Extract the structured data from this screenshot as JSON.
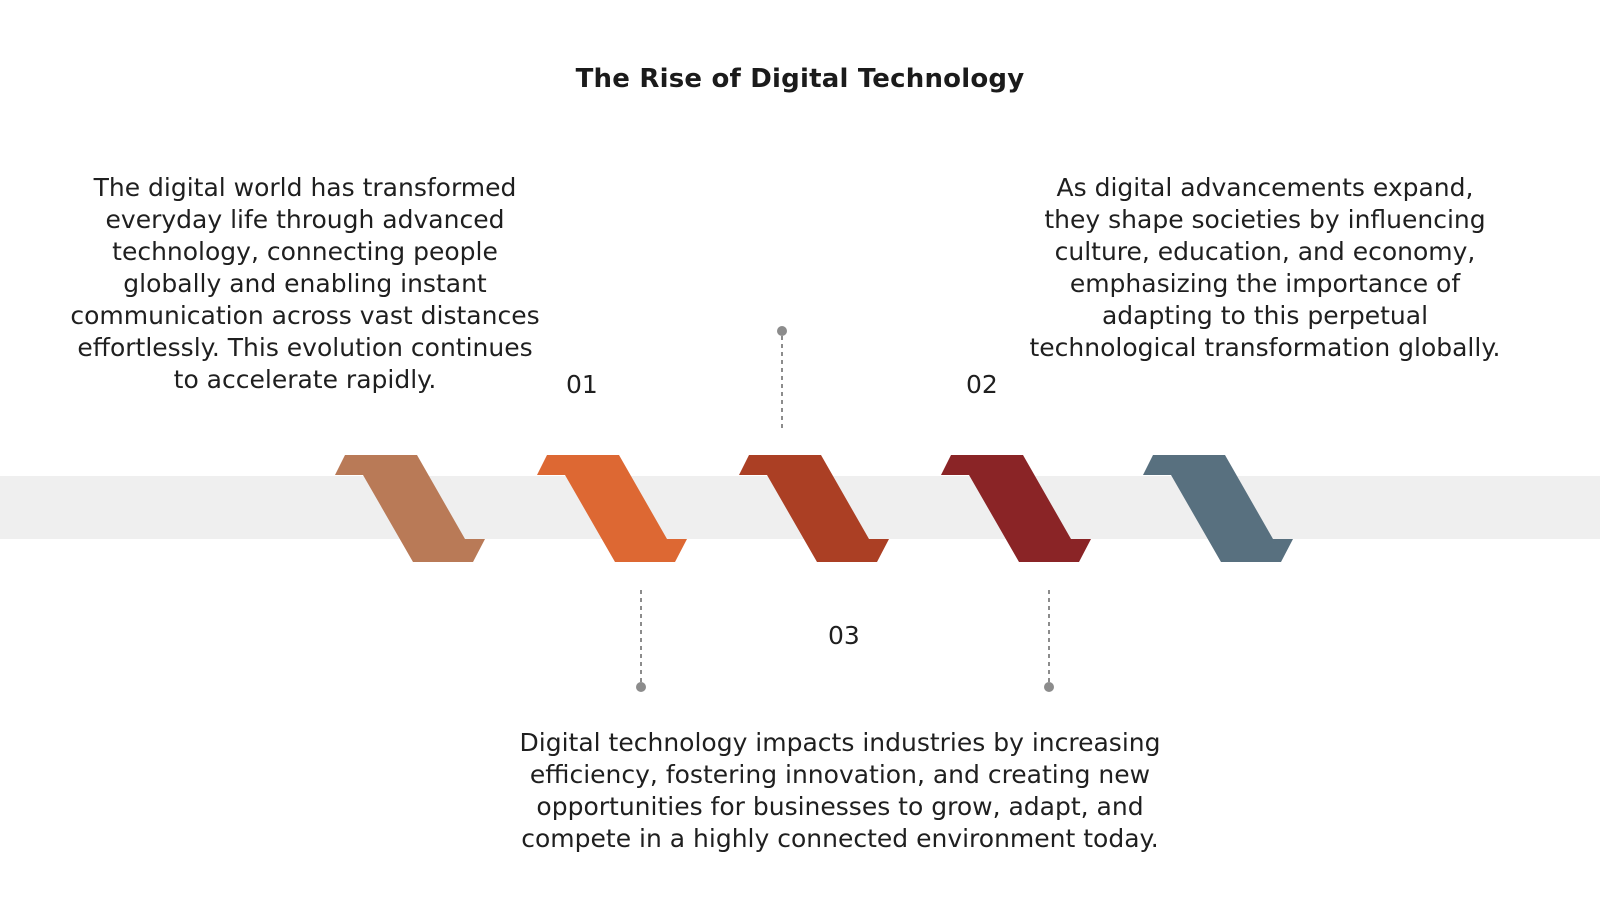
{
  "slide": {
    "title": "The Rise of Digital Technology"
  },
  "steps": [
    {
      "number": "01",
      "text": "The digital world has transformed everyday life through advanced technology, connecting people globally and enabling instant communication across vast distances effortlessly. This evolution continues to accelerate rapidly."
    },
    {
      "number": "02",
      "text": "As digital advancements expand, they shape societies by influencing culture, education, and economy, emphasizing the importance of adapting to this perpetual technological transformation globally."
    },
    {
      "number": "03",
      "text": "Digital technology impacts industries by increasing efficiency, fostering innovation, and creating new opportunities for businesses to grow, adapt, and compete in a highly connected environment today."
    }
  ],
  "colors": {
    "band": "#efefef",
    "connector": "#8c8c8c",
    "chevrons": [
      "#b97a57",
      "#dd6833",
      "#ab3f24",
      "#8a2426",
      "#58707f"
    ]
  }
}
